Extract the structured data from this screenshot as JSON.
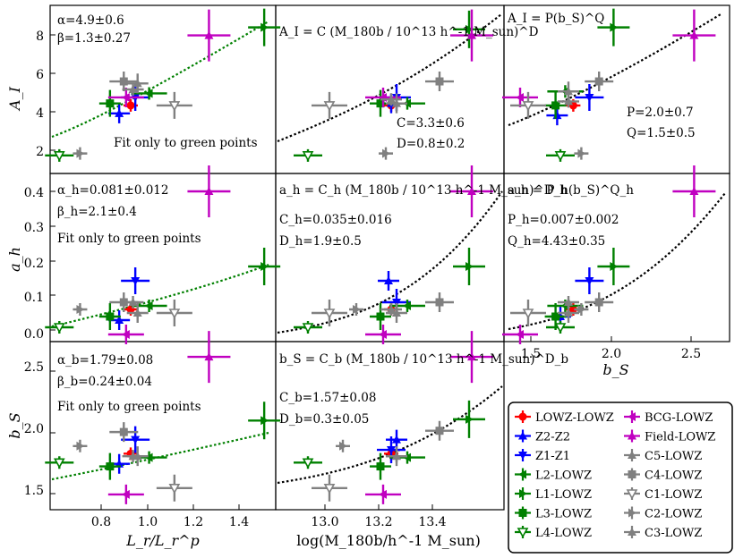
{
  "chart_data": [
    {
      "type": "scatter",
      "panel": "A_I vs L_r/L_r^p",
      "ylabel": "A_I",
      "ylim": [
        1.2,
        9.6
      ],
      "xlim": [
        0.62,
        1.6
      ],
      "yticks": [
        "2",
        "4",
        "6",
        "8"
      ],
      "annotations": [
        "α=4.9±0.6",
        "β=1.3±0.27",
        "Fit only to green points"
      ],
      "points": [
        {
          "name": "LOWZ-LOWZ",
          "x": 0.97,
          "y": 4.6
        },
        {
          "name": "Z2-Z2",
          "x": 0.92,
          "y": 4.2
        },
        {
          "name": "Z1-Z1",
          "x": 0.99,
          "y": 5.0
        },
        {
          "name": "L2-LOWZ",
          "x": 1.05,
          "y": 5.2
        },
        {
          "name": "L1-LOWZ",
          "x": 1.55,
          "y": 8.5
        },
        {
          "name": "L3-LOWZ",
          "x": 0.88,
          "y": 4.7
        },
        {
          "name": "L4-LOWZ",
          "x": 0.66,
          "y": 2.1
        },
        {
          "name": "BCG-LOWZ",
          "x": 0.95,
          "y": 5.0
        },
        {
          "name": "Field-LOWZ",
          "x": 1.31,
          "y": 8.1
        },
        {
          "name": "C5-LOWZ",
          "x": 0.98,
          "y": 5.4
        },
        {
          "name": "C4-LOWZ",
          "x": 0.94,
          "y": 5.8
        },
        {
          "name": "C1-LOWZ",
          "x": 1.16,
          "y": 4.6
        },
        {
          "name": "C2-LOWZ",
          "x": 0.75,
          "y": 2.2
        },
        {
          "name": "C3-LOWZ",
          "x": 1.0,
          "y": 5.7
        }
      ]
    },
    {
      "type": "scatter",
      "panel": "A_I vs log(M_180b/h^-1 M_sun)",
      "annotations": [
        "C=3.3±0.6",
        "D=0.8±0.2"
      ],
      "points": [
        {
          "name": "LOWZ-LOWZ",
          "x": 13.18,
          "y": 4.6
        },
        {
          "name": "Z2-Z2",
          "x": 13.18,
          "y": 4.7
        },
        {
          "name": "Z1-Z1",
          "x": 13.2,
          "y": 5.0
        },
        {
          "name": "L2-LOWZ",
          "x": 13.24,
          "y": 4.7
        },
        {
          "name": "L1-LOWZ",
          "x": 13.47,
          "y": 8.4
        },
        {
          "name": "L3-LOWZ",
          "x": 13.14,
          "y": 4.7
        },
        {
          "name": "L4-LOWZ",
          "x": 12.87,
          "y": 2.1
        },
        {
          "name": "BCG-LOWZ",
          "x": 13.15,
          "y": 5.0
        },
        {
          "name": "Field-LOWZ",
          "x": 13.48,
          "y": 8.1
        },
        {
          "name": "C5-LOWZ",
          "x": 13.18,
          "y": 4.9
        },
        {
          "name": "C4-LOWZ",
          "x": 13.36,
          "y": 5.8
        },
        {
          "name": "C1-LOWZ",
          "x": 12.95,
          "y": 4.6
        },
        {
          "name": "C2-LOWZ",
          "x": 13.16,
          "y": 2.2
        },
        {
          "name": "C3-LOWZ",
          "x": 13.2,
          "y": 4.7
        }
      ]
    },
    {
      "type": "scatter",
      "panel": "A_I vs b_S",
      "annotations": [
        "P=2.0±0.7",
        "Q=1.5±0.5"
      ],
      "points": [
        {
          "name": "LOWZ-LOWZ",
          "x": 1.78,
          "y": 4.6
        },
        {
          "name": "Z2-Z2",
          "x": 1.68,
          "y": 4.1
        },
        {
          "name": "Z1-Z1",
          "x": 1.88,
          "y": 5.0
        },
        {
          "name": "L2-LOWZ",
          "x": 1.73,
          "y": 5.3
        },
        {
          "name": "L1-LOWZ",
          "x": 2.03,
          "y": 8.5
        },
        {
          "name": "L3-LOWZ",
          "x": 1.67,
          "y": 4.6
        },
        {
          "name": "L4-LOWZ",
          "x": 1.7,
          "y": 2.1
        },
        {
          "name": "BCG-LOWZ",
          "x": 1.45,
          "y": 5.0
        },
        {
          "name": "Field-LOWZ",
          "x": 2.53,
          "y": 8.1
        },
        {
          "name": "C5-LOWZ",
          "x": 1.75,
          "y": 4.8
        },
        {
          "name": "C4-LOWZ",
          "x": 1.94,
          "y": 5.8
        },
        {
          "name": "C1-LOWZ",
          "x": 1.5,
          "y": 4.6
        },
        {
          "name": "C2-LOWZ",
          "x": 1.83,
          "y": 2.2
        },
        {
          "name": "C3-LOWZ",
          "x": 1.75,
          "y": 5.3
        }
      ]
    },
    {
      "type": "scatter",
      "panel": "a_h vs L_r/L_r^p",
      "ylabel": "a_h",
      "ylim": [
        -0.01,
        0.46
      ],
      "yticks": [
        "0.0",
        "0.1",
        "0.2",
        "0.3",
        "0.4"
      ],
      "annotations": [
        "α_h=0.081±0.012",
        "β_h=2.1±0.4",
        "Fit only to green points"
      ],
      "points": [
        {
          "name": "LOWZ-LOWZ",
          "x": 0.97,
          "y": 0.08
        },
        {
          "name": "Z2-Z2",
          "x": 0.92,
          "y": 0.05
        },
        {
          "name": "Z1-Z1",
          "x": 0.99,
          "y": 0.16
        },
        {
          "name": "L2-LOWZ",
          "x": 1.05,
          "y": 0.09
        },
        {
          "name": "L1-LOWZ",
          "x": 1.55,
          "y": 0.2
        },
        {
          "name": "L3-LOWZ",
          "x": 0.88,
          "y": 0.06
        },
        {
          "name": "L4-LOWZ",
          "x": 0.66,
          "y": 0.03
        },
        {
          "name": "BCG-LOWZ",
          "x": 0.95,
          "y": 0.01
        },
        {
          "name": "Field-LOWZ",
          "x": 1.31,
          "y": 0.41
        },
        {
          "name": "C5-LOWZ",
          "x": 0.98,
          "y": 0.1
        },
        {
          "name": "C4-LOWZ",
          "x": 0.94,
          "y": 0.1
        },
        {
          "name": "C1-LOWZ",
          "x": 1.16,
          "y": 0.07
        },
        {
          "name": "C2-LOWZ",
          "x": 0.75,
          "y": 0.08
        },
        {
          "name": "C3-LOWZ",
          "x": 1.0,
          "y": 0.07
        }
      ]
    },
    {
      "type": "scatter",
      "panel": "a_h vs log(M_180b/h^-1 M_sun)",
      "annotations": [
        "C_h=0.035±0.016",
        "D_h=1.9±0.5"
      ],
      "points": [
        {
          "name": "LOWZ-LOWZ",
          "x": 13.18,
          "y": 0.08
        },
        {
          "name": "Z2-Z2",
          "x": 13.17,
          "y": 0.16
        },
        {
          "name": "Z1-Z1",
          "x": 13.2,
          "y": 0.1
        },
        {
          "name": "L2-LOWZ",
          "x": 13.24,
          "y": 0.09
        },
        {
          "name": "L1-LOWZ",
          "x": 13.47,
          "y": 0.2
        },
        {
          "name": "L3-LOWZ",
          "x": 13.14,
          "y": 0.06
        },
        {
          "name": "L4-LOWZ",
          "x": 12.87,
          "y": 0.03
        },
        {
          "name": "BCG-LOWZ",
          "x": 13.15,
          "y": 0.01
        },
        {
          "name": "Field-LOWZ",
          "x": 13.48,
          "y": 0.41
        },
        {
          "name": "C5-LOWZ",
          "x": 13.18,
          "y": 0.08
        },
        {
          "name": "C4-LOWZ",
          "x": 13.36,
          "y": 0.1
        },
        {
          "name": "C1-LOWZ",
          "x": 12.95,
          "y": 0.07
        },
        {
          "name": "C2-LOWZ",
          "x": 13.05,
          "y": 0.08
        },
        {
          "name": "C3-LOWZ",
          "x": 13.2,
          "y": 0.07
        }
      ]
    },
    {
      "type": "scatter",
      "panel": "a_h vs b_S",
      "xlabel": "b_S",
      "xlim": [
        1.35,
        2.75
      ],
      "xticks": [
        "1.5",
        "2.0",
        "2.5"
      ],
      "annotations": [
        "P_h=0.007±0.002",
        "Q_h=4.43±0.35"
      ],
      "points": [
        {
          "name": "LOWZ-LOWZ",
          "x": 1.78,
          "y": 0.08
        },
        {
          "name": "Z2-Z2",
          "x": 1.7,
          "y": 0.06
        },
        {
          "name": "Z1-Z1",
          "x": 1.88,
          "y": 0.16
        },
        {
          "name": "L2-LOWZ",
          "x": 1.73,
          "y": 0.09
        },
        {
          "name": "L1-LOWZ",
          "x": 2.03,
          "y": 0.2
        },
        {
          "name": "L3-LOWZ",
          "x": 1.67,
          "y": 0.06
        },
        {
          "name": "L4-LOWZ",
          "x": 1.7,
          "y": 0.03
        },
        {
          "name": "BCG-LOWZ",
          "x": 1.45,
          "y": 0.01
        },
        {
          "name": "Field-LOWZ",
          "x": 2.53,
          "y": 0.41
        },
        {
          "name": "C5-LOWZ",
          "x": 1.75,
          "y": 0.1
        },
        {
          "name": "C4-LOWZ",
          "x": 1.94,
          "y": 0.1
        },
        {
          "name": "C1-LOWZ",
          "x": 1.5,
          "y": 0.07
        },
        {
          "name": "C2-LOWZ",
          "x": 1.83,
          "y": 0.08
        },
        {
          "name": "C3-LOWZ",
          "x": 1.75,
          "y": 0.07
        }
      ]
    },
    {
      "type": "scatter",
      "panel": "b_S vs L_r/L_r^p",
      "ylabel": "b_S",
      "xlabel": "L_r/L_r^p",
      "ylim": [
        1.33,
        2.65
      ],
      "yticks": [
        "1.5",
        "2.0",
        "2.5"
      ],
      "xticks": [
        "0.8",
        "1.0",
        "1.2",
        "1.4"
      ],
      "annotations": [
        "α_b=1.79±0.08",
        "β_b=0.24±0.04",
        "Fit only to green points"
      ],
      "points": [
        {
          "name": "LOWZ-LOWZ",
          "x": 0.97,
          "y": 1.77
        },
        {
          "name": "Z2-Z2",
          "x": 0.92,
          "y": 1.69
        },
        {
          "name": "Z1-Z1",
          "x": 0.99,
          "y": 1.88
        },
        {
          "name": "L2-LOWZ",
          "x": 1.05,
          "y": 1.74
        },
        {
          "name": "L1-LOWZ",
          "x": 1.55,
          "y": 2.03
        },
        {
          "name": "L3-LOWZ",
          "x": 0.88,
          "y": 1.67
        },
        {
          "name": "L4-LOWZ",
          "x": 0.66,
          "y": 1.7
        },
        {
          "name": "BCG-LOWZ",
          "x": 0.95,
          "y": 1.45
        },
        {
          "name": "Field-LOWZ",
          "x": 1.31,
          "y": 2.53
        },
        {
          "name": "C5-LOWZ",
          "x": 0.98,
          "y": 1.75
        },
        {
          "name": "C4-LOWZ",
          "x": 0.94,
          "y": 1.94
        },
        {
          "name": "C1-LOWZ",
          "x": 1.16,
          "y": 1.5
        },
        {
          "name": "C2-LOWZ",
          "x": 0.75,
          "y": 1.83
        },
        {
          "name": "C3-LOWZ",
          "x": 1.0,
          "y": 1.75
        }
      ]
    },
    {
      "type": "scatter",
      "panel": "b_S vs log(M_180b/h^-1 M_sun)",
      "xlabel": "log(M_180b/h^-1 M_sun)",
      "xlim": [
        12.75,
        13.6
      ],
      "xticks": [
        "13.0",
        "13.2",
        "13.4"
      ],
      "annotations": [
        "C_b=1.57±0.08",
        "D_b=0.3±0.05"
      ],
      "points": [
        {
          "name": "LOWZ-LOWZ",
          "x": 13.18,
          "y": 1.77
        },
        {
          "name": "Z2-Z2",
          "x": 13.2,
          "y": 1.88
        },
        {
          "name": "Z1-Z1",
          "x": 13.18,
          "y": 1.8
        },
        {
          "name": "L2-LOWZ",
          "x": 13.24,
          "y": 1.74
        },
        {
          "name": "L1-LOWZ",
          "x": 13.47,
          "y": 2.04
        },
        {
          "name": "L3-LOWZ",
          "x": 13.14,
          "y": 1.67
        },
        {
          "name": "L4-LOWZ",
          "x": 12.87,
          "y": 1.7
        },
        {
          "name": "BCG-LOWZ",
          "x": 13.15,
          "y": 1.45
        },
        {
          "name": "Field-LOWZ",
          "x": 13.48,
          "y": 2.53
        },
        {
          "name": "C5-LOWZ",
          "x": 13.2,
          "y": 1.75
        },
        {
          "name": "C4-LOWZ",
          "x": 13.36,
          "y": 1.95
        },
        {
          "name": "C1-LOWZ",
          "x": 12.95,
          "y": 1.5
        },
        {
          "name": "C2-LOWZ",
          "x": 13.0,
          "y": 1.83
        },
        {
          "name": "C3-LOWZ",
          "x": 13.2,
          "y": 1.75
        }
      ]
    }
  ],
  "panel_text": {
    "r0": [
      "α=4.9±0.6",
      "β=1.3±0.27",
      "Fit only to green points"
    ],
    "r1": [
      "α_h=0.081±0.012",
      "β_h=2.1±0.4",
      "Fit only to green points"
    ],
    "r2": [
      "α_b=1.79±0.08",
      "β_b=0.24±0.04",
      "Fit only to green points"
    ],
    "m0": [
      "C=3.3±0.6",
      "D=0.8±0.2"
    ],
    "m1": [
      "C_h=0.035±0.016",
      "D_h=1.9±0.5"
    ],
    "m2": [
      "C_b=1.57±0.08",
      "D_b=0.3±0.05"
    ],
    "b0": [
      "P=2.0±0.7",
      "Q=1.5±0.5"
    ],
    "b1": [
      "P_h=0.007±0.002",
      "Q_h=4.43±0.35"
    ],
    "formulas": [
      "A_I = C (M_180b / 10^13 h^-1 M_sun)^D",
      "a_h = C_h (M_180b / 10^13 h^-1 M_sun)^D_h",
      "b_S = C_b (M_180b / 10^13 h^-1 M_sun)^D_b",
      "A_I = P(b_S)^Q",
      "a_h = P_h(b_S)^Q_h"
    ]
  },
  "axes": {
    "ylabels": [
      "A_I",
      "a_h",
      "b_S"
    ],
    "xlabel_left": "L_r/L_r^p",
    "xlabel_mid": "log(M_180b/h^-1 M_sun)",
    "xlabel_right": "b_S",
    "xticks_left": [
      "0.8",
      "1.0",
      "1.2",
      "1.4"
    ],
    "xticks_mid": [
      "13.0",
      "13.2",
      "13.4"
    ],
    "xticks_right": [
      "1.5",
      "2.0",
      "2.5"
    ],
    "yticks_r0": [
      "2",
      "4",
      "6",
      "8"
    ],
    "yticks_r1": [
      "0.0",
      "0.1",
      "0.2",
      "0.3",
      "0.4"
    ],
    "yticks_r2": [
      "1.5",
      "2.0",
      "2.5"
    ]
  },
  "legend": {
    "items": [
      {
        "label": "LOWZ-LOWZ",
        "color": "#ff0000",
        "marker": "circle"
      },
      {
        "label": "BCG-LOWZ",
        "color": "#c000c0",
        "marker": "tri-left"
      },
      {
        "label": "Z2-Z2",
        "color": "#0000ff",
        "marker": "tri-up"
      },
      {
        "label": "Field-LOWZ",
        "color": "#c000c0",
        "marker": "tri-up"
      },
      {
        "label": "Z1-Z1",
        "color": "#0000ff",
        "marker": "tri-down"
      },
      {
        "label": "C5-LOWZ",
        "color": "#808080",
        "marker": "tri-up"
      },
      {
        "label": "L2-LOWZ",
        "color": "#008000",
        "marker": "tri-left"
      },
      {
        "label": "C4-LOWZ",
        "color": "#808080",
        "marker": "square"
      },
      {
        "label": "L1-LOWZ",
        "color": "#008000",
        "marker": "tri-right"
      },
      {
        "label": "C1-LOWZ",
        "color": "#808080",
        "marker": "tri-down-open"
      },
      {
        "label": "L3-LOWZ",
        "color": "#008000",
        "marker": "square"
      },
      {
        "label": "C2-LOWZ",
        "color": "#808080",
        "marker": "tri-right"
      },
      {
        "label": "L4-LOWZ",
        "color": "#008000",
        "marker": "tri-down-open"
      },
      {
        "label": "C3-LOWZ",
        "color": "#808080",
        "marker": "tri-up"
      }
    ]
  },
  "colors": {
    "red": "#ff0000",
    "blue": "#0000ff",
    "green": "#008000",
    "magenta": "#c000c0",
    "gray": "#808080",
    "fit": "#008000"
  }
}
